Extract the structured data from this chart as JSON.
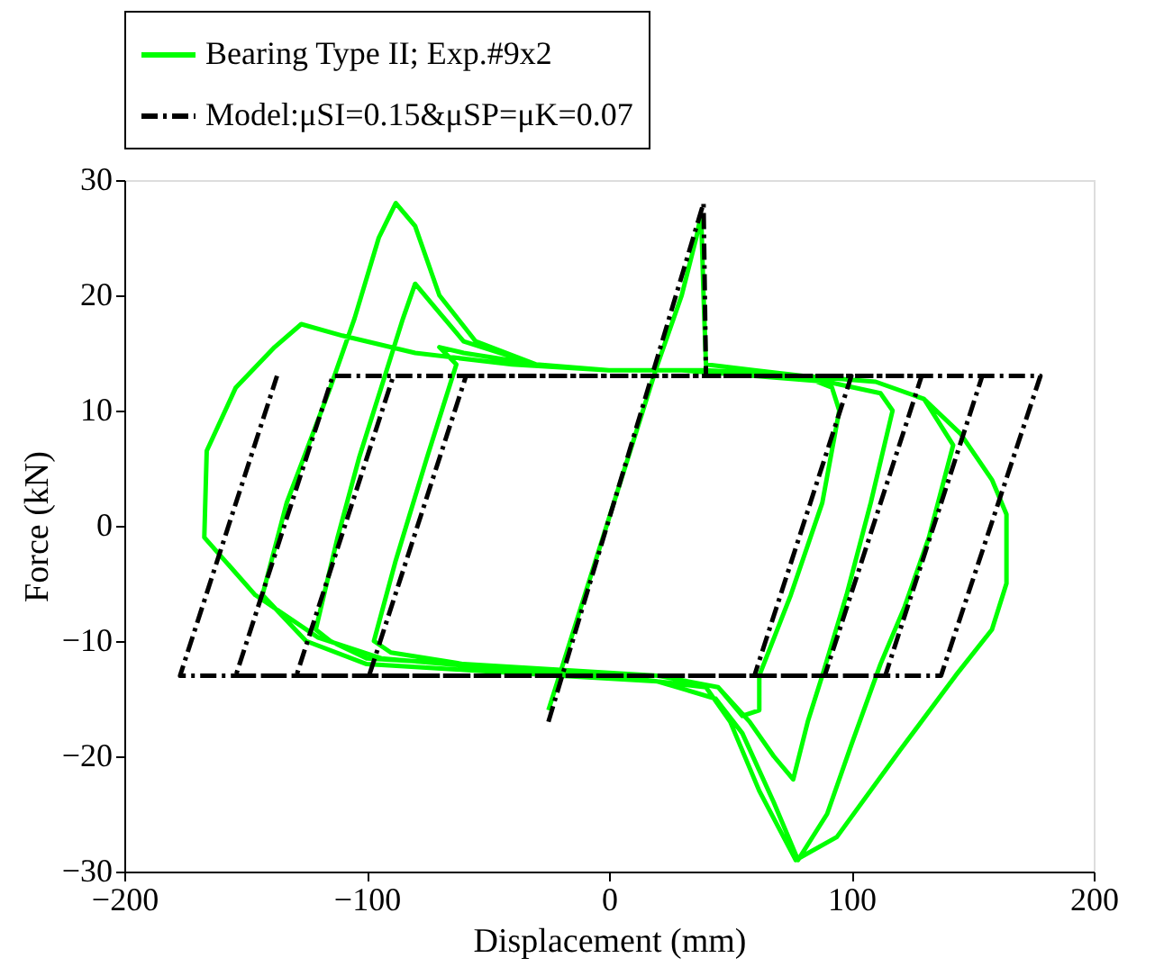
{
  "chart_data": {
    "type": "line",
    "xlabel": "Displacement (mm)",
    "ylabel": "Force (kN)",
    "xlim": [
      -200,
      200
    ],
    "xticks": [
      -200,
      -100,
      0,
      100,
      200
    ],
    "ylim": [
      -30,
      30
    ],
    "yticks": [
      -30,
      -20,
      -10,
      0,
      10,
      20,
      30
    ],
    "grid": false,
    "legend": "top",
    "marker": "none",
    "series": [
      {
        "name": "Bearing Type II; Exp.#9x2",
        "color": "#00ff00",
        "line_style": "solid",
        "x": [
          -25,
          -10,
          5,
          20,
          30,
          36,
          38,
          39,
          40,
          60,
          80,
          92,
          95,
          88,
          75,
          62,
          62,
          55,
          45,
          20,
          -20,
          -60,
          -90,
          -97,
          -88,
          -75,
          -63,
          -70,
          -60,
          -30,
          0,
          30,
          60,
          90,
          112,
          117,
          108,
          98,
          88,
          82,
          76,
          68,
          58,
          45,
          20,
          -20,
          -60,
          -100,
          -115,
          -121,
          -112,
          -103,
          -94,
          -85,
          -80,
          -72,
          -60,
          -30,
          0,
          40,
          80,
          110,
          130,
          142,
          132,
          122,
          112,
          100,
          90,
          78,
          68,
          55,
          44,
          20,
          -20,
          -60,
          -100,
          -125,
          -143,
          -133,
          -124,
          -115,
          -105,
          -95,
          -88,
          -80,
          -70,
          -55,
          -30,
          0,
          40,
          80,
          110,
          130,
          145,
          158,
          164,
          164,
          158,
          143,
          120,
          94,
          77,
          62,
          50,
          40,
          0,
          -40,
          -94,
          -120,
          -146,
          -167,
          -166,
          -154,
          -138,
          -127,
          -110,
          -80,
          -40,
          0
        ],
        "values": [
          -16,
          -6,
          4,
          14,
          20,
          25,
          27,
          20,
          14,
          13.5,
          13,
          12,
          10,
          2,
          -6,
          -13,
          -16,
          -16.5,
          -14,
          -13,
          -12.5,
          -12,
          -11,
          -10,
          -3,
          6,
          14,
          15.5,
          15,
          14,
          13.5,
          13.5,
          13,
          12.5,
          11.5,
          10,
          2,
          -6,
          -13,
          -17,
          -22,
          -20,
          -17,
          -14,
          -13,
          -12.5,
          -12,
          -11.5,
          -10,
          -9,
          -1,
          6,
          12,
          18,
          21,
          19,
          16,
          14,
          13.5,
          13.5,
          13,
          12.5,
          11,
          7,
          -1,
          -7,
          -12,
          -19,
          -25,
          -29,
          -24,
          -18,
          -15,
          -13.5,
          -13,
          -12.5,
          -12,
          -10,
          -6,
          2,
          7,
          12,
          18,
          25,
          28,
          26,
          20,
          16,
          14,
          13.5,
          13.5,
          13,
          12.5,
          11,
          8,
          4,
          1,
          -5,
          -9,
          -13,
          -19.5,
          -27,
          -29,
          -23,
          -17,
          -14,
          -13,
          -12.5,
          -11.5,
          -9.7,
          -6,
          -1,
          6.5,
          12,
          15.5,
          17.5,
          16.5,
          15,
          14,
          13.5
        ]
      },
      {
        "name": "Model:μSI=0.15&μSP=μK=0.07",
        "color": "#000000",
        "line_style": "dashed",
        "x": [
          -25,
          39,
          40,
          100,
          60,
          -99,
          -59,
          129,
          89,
          -129,
          -89,
          154,
          114,
          -154,
          -114,
          178,
          137,
          -177,
          -137
        ],
        "values": [
          -17,
          28,
          13,
          13,
          -13,
          -13,
          13,
          13,
          -13,
          -13,
          13,
          13,
          -13,
          -13,
          13,
          13,
          -13,
          -13,
          13
        ]
      }
    ]
  }
}
